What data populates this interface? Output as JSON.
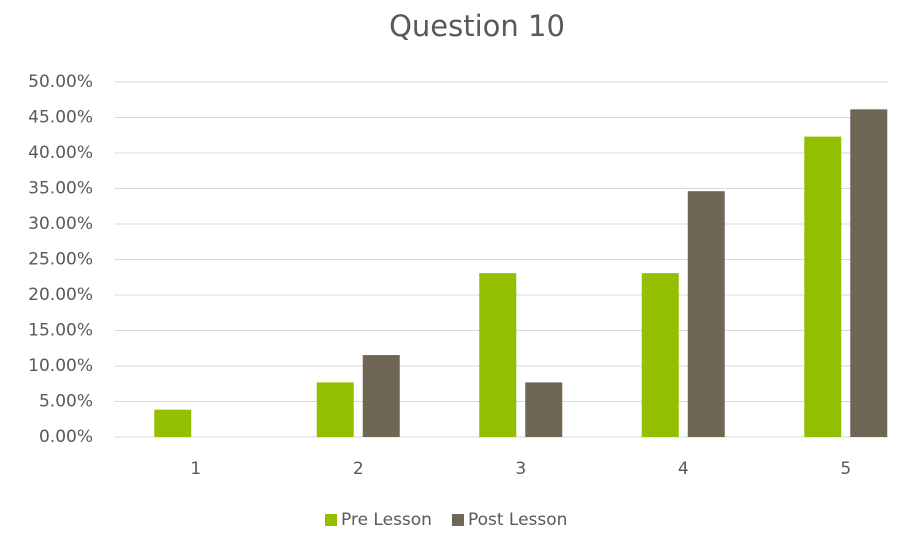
{
  "chart_data": {
    "type": "bar",
    "title": "Question 10",
    "categories": [
      "1",
      "2",
      "3",
      "4",
      "5"
    ],
    "series": [
      {
        "name": "Pre Lesson",
        "color": "#92c000",
        "values": [
          3.85,
          7.69,
          23.08,
          23.08,
          42.31
        ]
      },
      {
        "name": "Post Lesson",
        "color": "#706656",
        "values": [
          0,
          11.54,
          7.69,
          34.62,
          46.15
        ]
      }
    ],
    "ylim": [
      0,
      50
    ],
    "yticks": [
      {
        "value": 0,
        "label": "0.00%"
      },
      {
        "value": 5,
        "label": "5.00%"
      },
      {
        "value": 10,
        "label": "10.00%"
      },
      {
        "value": 15,
        "label": "15.00%"
      },
      {
        "value": 20,
        "label": "20.00%"
      },
      {
        "value": 25,
        "label": "25.00%"
      },
      {
        "value": 30,
        "label": "30.00%"
      },
      {
        "value": 35,
        "label": "35.00%"
      },
      {
        "value": 40,
        "label": "40.00%"
      },
      {
        "value": 45,
        "label": "45.00%"
      },
      {
        "value": 50,
        "label": "50.00%"
      }
    ],
    "grid": true,
    "legend": "bottom"
  }
}
